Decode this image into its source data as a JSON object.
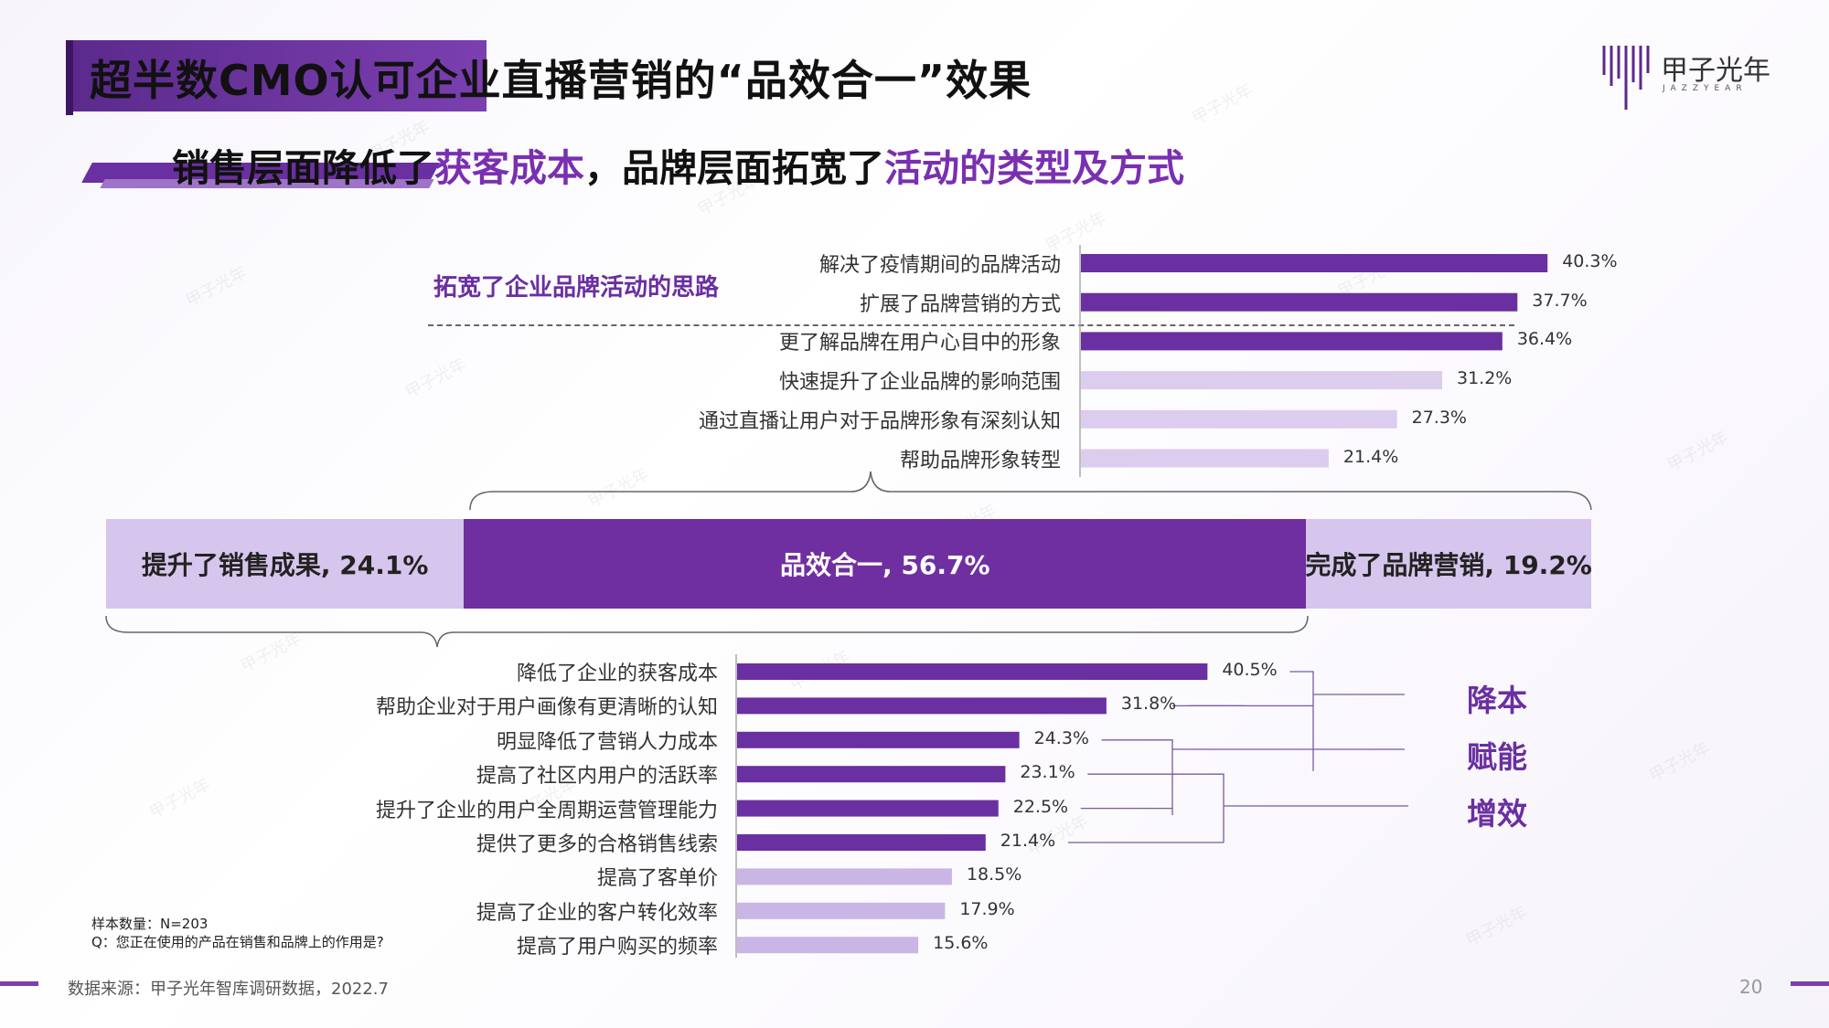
{
  "title": "超半数CMO认可企业直播营销的“品效合一”效果",
  "subtitle": {
    "part1": "销售层面降低了",
    "hl1": "获客成本",
    "part2": "，品牌层面拓宽了",
    "hl2": "活动的类型及方式"
  },
  "logo": {
    "name": "甲子光年",
    "sub": "JAZZYEAR"
  },
  "watermark": "甲子光年",
  "colors": {
    "dark": "#6a2fa0",
    "light": "#dccdee",
    "mid": "#c9b6e4"
  },
  "chart_data": [
    {
      "type": "bar",
      "orientation": "horizontal",
      "group_label": "拓宽了企业品牌活动的思路",
      "categories": [
        "解决了疫情期间的品牌活动",
        "扩展了品牌营销的方式",
        "更了解品牌在用户心目中的形象",
        "快速提升了企业品牌的影响范围",
        "通过直播让用户对于品牌形象有深刻认知",
        "帮助品牌形象转型"
      ],
      "values": [
        40.3,
        37.7,
        36.4,
        31.2,
        27.3,
        21.4
      ],
      "value_labels": [
        "40.3%",
        "37.7%",
        "36.4%",
        "31.2%",
        "27.3%",
        "21.4%"
      ],
      "highlight": [
        true,
        true,
        true,
        false,
        false,
        false
      ]
    },
    {
      "type": "bar",
      "orientation": "horizontal",
      "stacked": true,
      "segments": [
        {
          "label": "提升了销售成果, 24.1%",
          "value": 24.1
        },
        {
          "label": "品效合一, 56.7%",
          "value": 56.7
        },
        {
          "label": "完成了品牌营销, 19.2%",
          "value": 19.2
        }
      ]
    },
    {
      "type": "bar",
      "orientation": "horizontal",
      "categories": [
        "降低了企业的获客成本",
        "帮助企业对于用户画像有更清晰的认知",
        "明显降低了营销人力成本",
        "提高了社区内用户的活跃率",
        "提升了企业的用户全周期运营管理能力",
        "提供了更多的合格销售线索",
        "提高了客单价",
        "提高了企业的客户转化效率",
        "提高了用户购买的频率"
      ],
      "values": [
        40.5,
        31.8,
        24.3,
        23.1,
        22.5,
        21.4,
        18.5,
        17.9,
        15.6
      ],
      "value_labels": [
        "40.5%",
        "31.8%",
        "24.3%",
        "23.1%",
        "22.5%",
        "21.4%",
        "18.5%",
        "17.9%",
        "15.6%"
      ],
      "highlight": [
        true,
        true,
        true,
        true,
        true,
        true,
        false,
        false,
        false
      ],
      "tags": [
        "降本",
        "赋能",
        "增效"
      ]
    }
  ],
  "notes": {
    "sample": "样本数量：N=203",
    "question": "Q：您正在使用的产品在销售和品牌上的作用是?"
  },
  "source": "数据来源：甲子光年智库调研数据，2022.7",
  "page": "20"
}
